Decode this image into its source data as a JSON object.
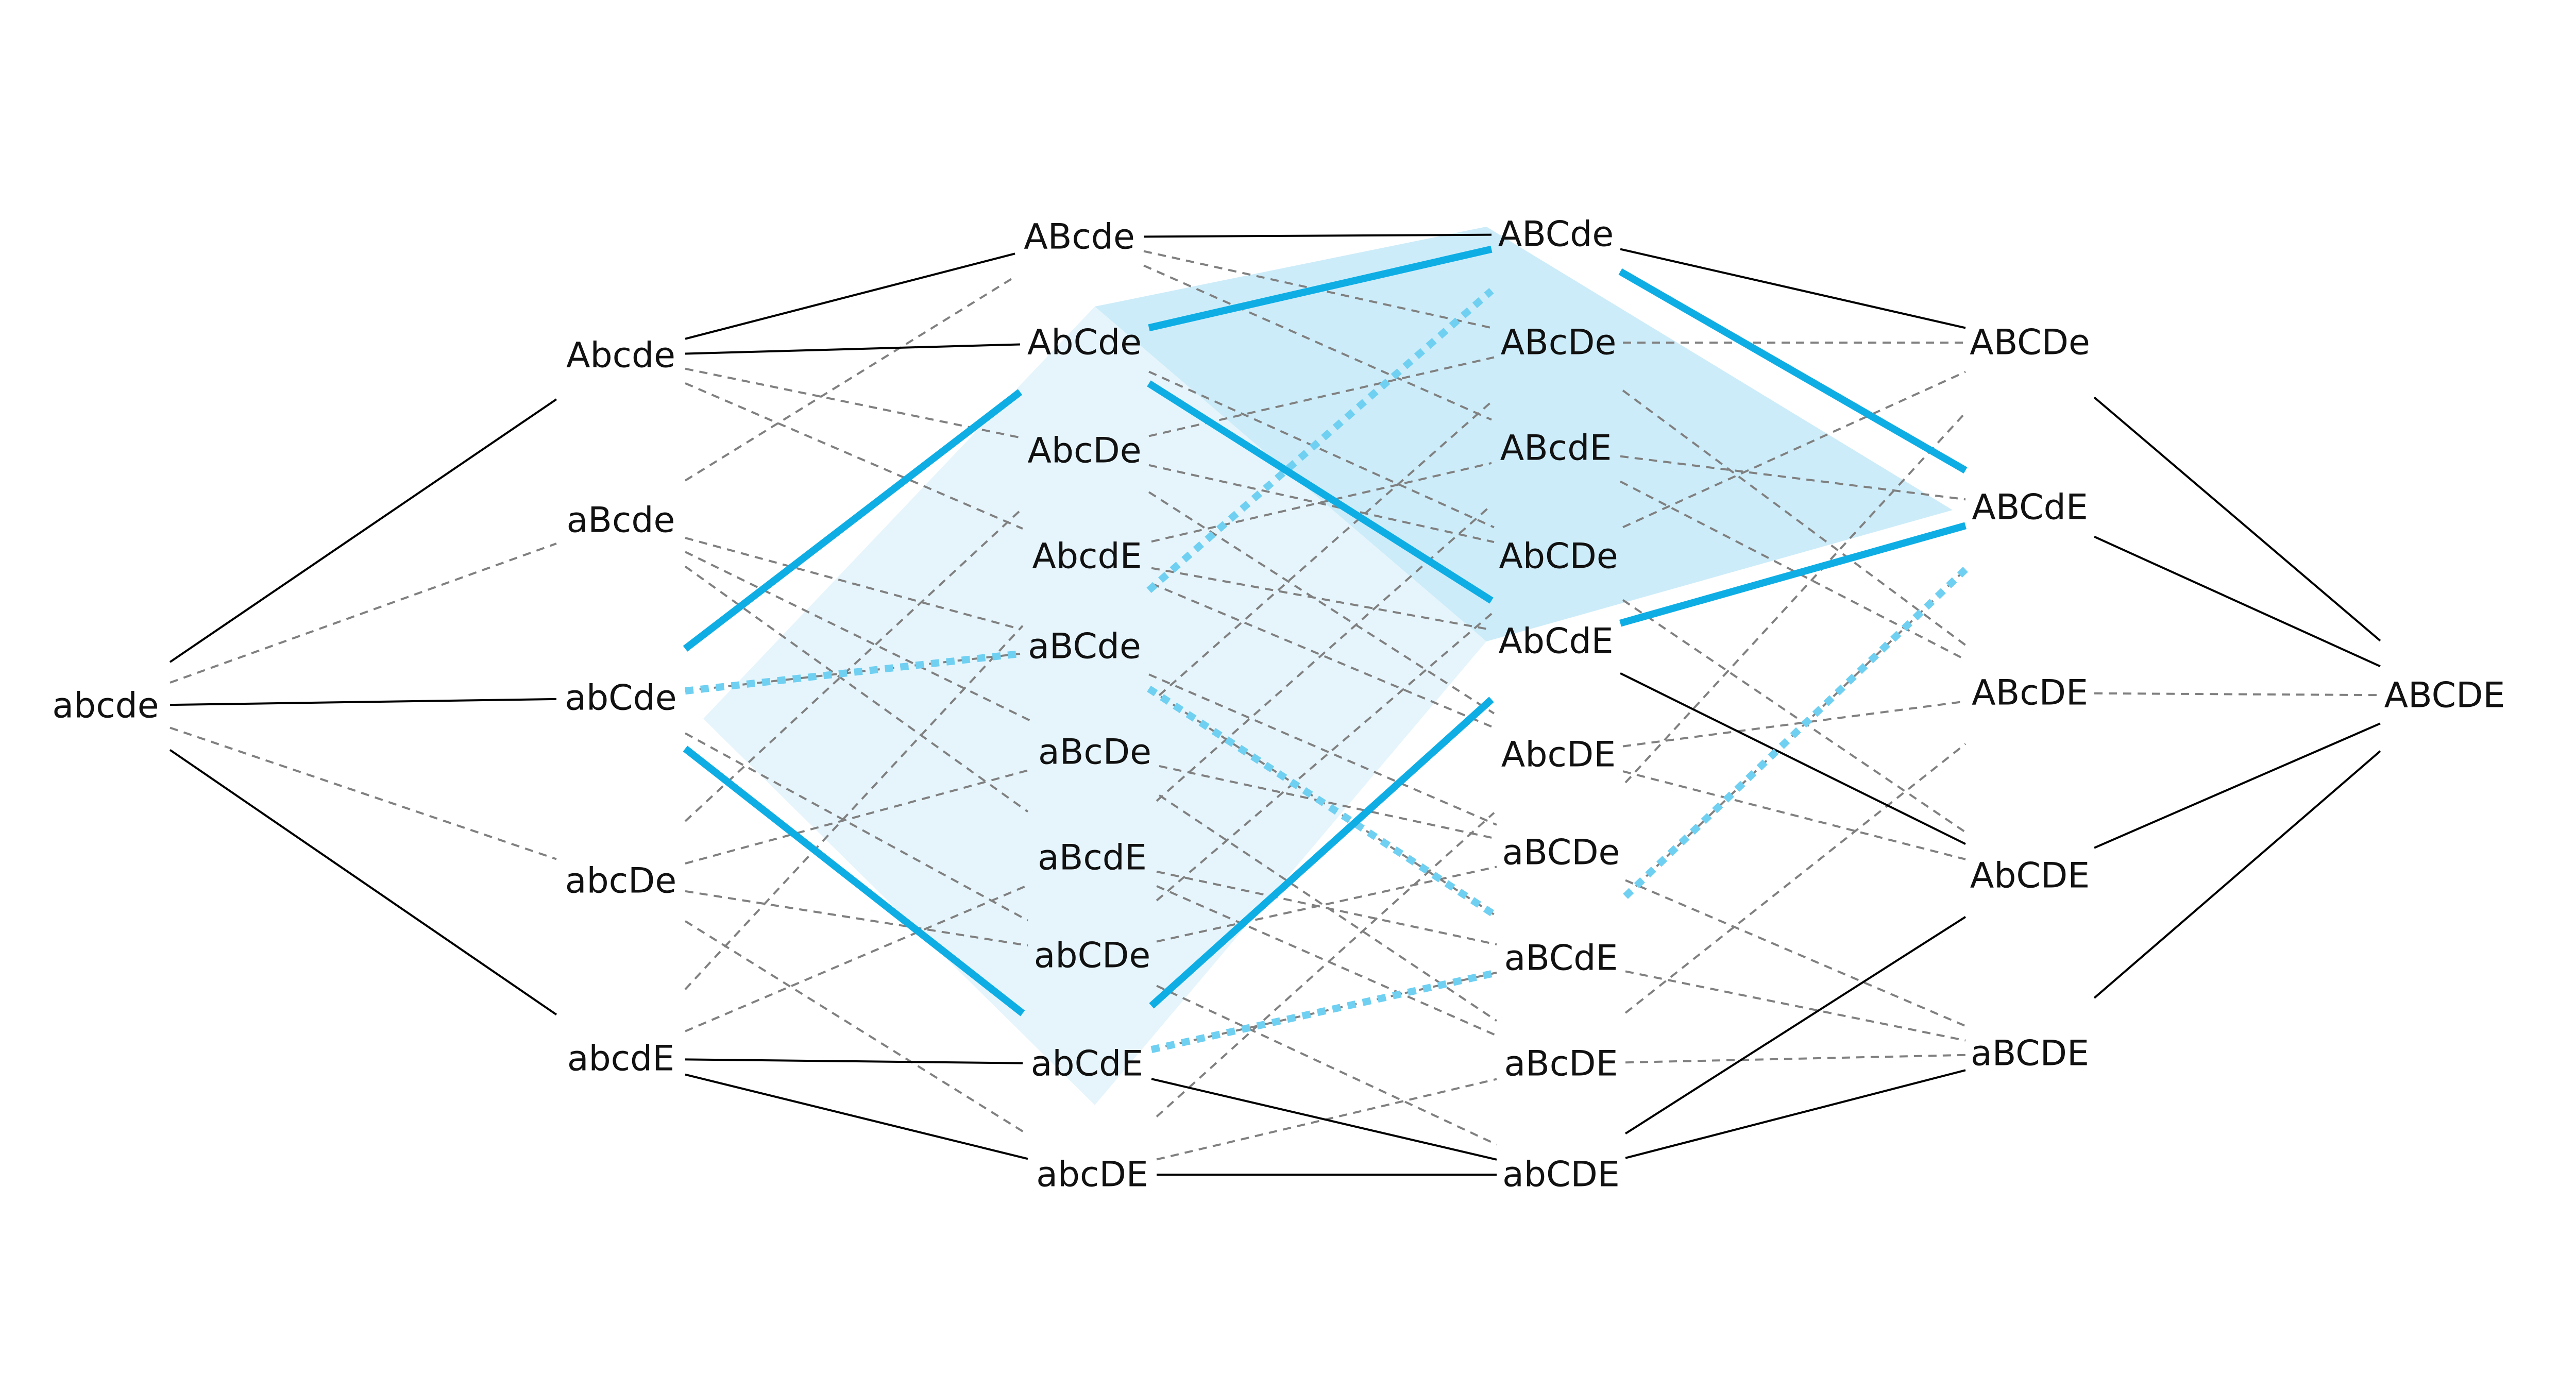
{
  "colors": {
    "background": "#ffffff",
    "label": "#111111",
    "edge_solid": "#000000",
    "edge_dashed": "#808080",
    "highlight_solid": "#0eaee5",
    "highlight_dotted": "#6fd0f2",
    "region_light": "#e6f5fc",
    "region_dark": "#cdecf9"
  },
  "nodes": [
    {
      "id": "abcde",
      "label": "abcde"
    },
    {
      "id": "Abcde",
      "label": "Abcde"
    },
    {
      "id": "aBcde",
      "label": "aBcde"
    },
    {
      "id": "abCde",
      "label": "abCde"
    },
    {
      "id": "abcDe",
      "label": "abcDe"
    },
    {
      "id": "abcdE",
      "label": "abcdE"
    },
    {
      "id": "ABcde",
      "label": "ABcde"
    },
    {
      "id": "AbCde",
      "label": "AbCde"
    },
    {
      "id": "AbcDe",
      "label": "AbcDe"
    },
    {
      "id": "AbcdE",
      "label": "AbcdE"
    },
    {
      "id": "aBCde",
      "label": "aBCde"
    },
    {
      "id": "aBcDe",
      "label": "aBcDe"
    },
    {
      "id": "aBcdE",
      "label": "aBcdE"
    },
    {
      "id": "abCDe",
      "label": "abCDe"
    },
    {
      "id": "abCdE",
      "label": "abCdE"
    },
    {
      "id": "abcDE",
      "label": "abcDE"
    },
    {
      "id": "ABCde",
      "label": "ABCde"
    },
    {
      "id": "ABcDe",
      "label": "ABcDe"
    },
    {
      "id": "ABcdE",
      "label": "ABcdE"
    },
    {
      "id": "AbCDe",
      "label": "AbCDe"
    },
    {
      "id": "AbCdE",
      "label": "AbCdE"
    },
    {
      "id": "AbcDE",
      "label": "AbcDE"
    },
    {
      "id": "aBCDe",
      "label": "aBCDe"
    },
    {
      "id": "aBCdE",
      "label": "aBCdE"
    },
    {
      "id": "aBcDE",
      "label": "aBcDE"
    },
    {
      "id": "abCDE",
      "label": "abCDE"
    },
    {
      "id": "ABCDe",
      "label": "ABCDe"
    },
    {
      "id": "ABCdE",
      "label": "ABCdE"
    },
    {
      "id": "ABcDE",
      "label": "ABcDE"
    },
    {
      "id": "AbCDE",
      "label": "AbCDE"
    },
    {
      "id": "aBCDE",
      "label": "aBCDE"
    },
    {
      "id": "ABCDE",
      "label": "ABCDE"
    }
  ],
  "edges": {
    "solid": [
      [
        "abcde",
        "Abcde"
      ],
      [
        "abcde",
        "abCde"
      ],
      [
        "abcde",
        "abcdE"
      ],
      [
        "Abcde",
        "ABcde"
      ],
      [
        "Abcde",
        "AbCde"
      ],
      [
        "abcdE",
        "abCdE"
      ],
      [
        "abcdE",
        "abcDE"
      ],
      [
        "ABcde",
        "ABCde"
      ],
      [
        "abcDE",
        "abCDE"
      ],
      [
        "abCdE",
        "abCDE"
      ],
      [
        "ABCde",
        "ABCDe"
      ],
      [
        "AbCdE",
        "AbCDE"
      ],
      [
        "abCDE",
        "AbCDE"
      ],
      [
        "abCDE",
        "aBCDE"
      ],
      [
        "ABCDe",
        "ABCDE"
      ],
      [
        "ABCdE",
        "ABCDE"
      ],
      [
        "AbCDE",
        "ABCDE"
      ],
      [
        "aBCDE",
        "ABCDE"
      ]
    ],
    "dashed": [
      [
        "abcde",
        "aBcde"
      ],
      [
        "abcde",
        "abcDe"
      ],
      [
        "Abcde",
        "AbcDe"
      ],
      [
        "Abcde",
        "AbcdE"
      ],
      [
        "aBcde",
        "ABcde"
      ],
      [
        "aBcde",
        "aBCde"
      ],
      [
        "aBcde",
        "aBcDe"
      ],
      [
        "aBcde",
        "aBcdE"
      ],
      [
        "abCde",
        "aBCde"
      ],
      [
        "abCde",
        "abCDe"
      ],
      [
        "abcDe",
        "AbcDe"
      ],
      [
        "abcDe",
        "aBcDe"
      ],
      [
        "abcDe",
        "abCDe"
      ],
      [
        "abcDe",
        "abcDE"
      ],
      [
        "abcdE",
        "AbcdE"
      ],
      [
        "abcdE",
        "aBcdE"
      ],
      [
        "ABcde",
        "ABcDe"
      ],
      [
        "ABcde",
        "ABcdE"
      ],
      [
        "AbCde",
        "AbCDe"
      ],
      [
        "AbCde",
        "AbCdE"
      ],
      [
        "AbcDe",
        "ABcDe"
      ],
      [
        "AbcDe",
        "AbCDe"
      ],
      [
        "AbcDe",
        "AbcDE"
      ],
      [
        "AbcdE",
        "ABcdE"
      ],
      [
        "AbcdE",
        "AbCdE"
      ],
      [
        "AbcdE",
        "AbcDE"
      ],
      [
        "aBCde",
        "aBCDe"
      ],
      [
        "aBCde",
        "aBCdE"
      ],
      [
        "aBcDe",
        "ABcDe"
      ],
      [
        "aBcDe",
        "aBCDe"
      ],
      [
        "aBcDe",
        "aBcDE"
      ],
      [
        "aBcdE",
        "ABcdE"
      ],
      [
        "aBcdE",
        "aBCdE"
      ],
      [
        "aBcdE",
        "aBcDE"
      ],
      [
        "abCDe",
        "AbCDe"
      ],
      [
        "abCDe",
        "aBCDe"
      ],
      [
        "abCDe",
        "abCDE"
      ],
      [
        "abCdE",
        "aBCdE"
      ],
      [
        "abcDE",
        "AbcDE"
      ],
      [
        "abcDE",
        "aBcDE"
      ],
      [
        "ABCde",
        "ABCdE"
      ],
      [
        "ABcDe",
        "ABCDe"
      ],
      [
        "ABcDe",
        "ABcDE"
      ],
      [
        "ABcdE",
        "ABCdE"
      ],
      [
        "ABcdE",
        "ABcDE"
      ],
      [
        "AbCDe",
        "ABCDe"
      ],
      [
        "AbCDe",
        "AbCDE"
      ],
      [
        "AbcDE",
        "ABcDE"
      ],
      [
        "AbcDE",
        "AbCDE"
      ],
      [
        "aBCDe",
        "ABCDe"
      ],
      [
        "aBCDe",
        "aBCDE"
      ],
      [
        "aBCdE",
        "ABCdE"
      ],
      [
        "aBCdE",
        "aBCDE"
      ],
      [
        "aBcDE",
        "ABcDE"
      ],
      [
        "aBcDE",
        "aBCDE"
      ],
      [
        "ABcDE",
        "ABCDE"
      ]
    ],
    "highlight_solid": [
      [
        "abCde",
        "AbCde"
      ],
      [
        "abCde",
        "abCdE"
      ],
      [
        "AbCde",
        "ABCde"
      ],
      [
        "AbCde",
        "AbCdE"
      ],
      [
        "abCdE",
        "AbCdE"
      ],
      [
        "ABCde",
        "ABCdE"
      ],
      [
        "AbCdE",
        "ABCdE"
      ]
    ],
    "highlight_dotted": [
      [
        "abCde",
        "aBCde"
      ],
      [
        "aBCde",
        "ABCde"
      ],
      [
        "aBCde",
        "aBCdE"
      ],
      [
        "abCdE",
        "aBCdE"
      ],
      [
        "aBCdE",
        "ABCdE"
      ]
    ]
  }
}
